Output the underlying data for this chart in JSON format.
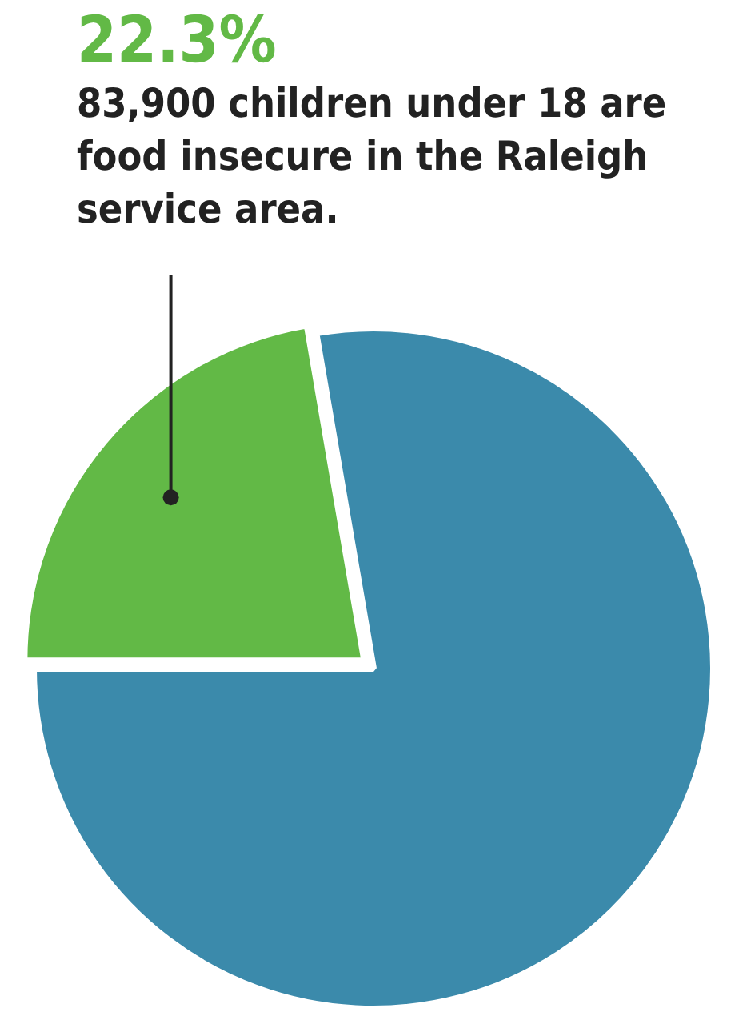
{
  "chart_data": {
    "type": "pie",
    "categories": [
      null,
      null
    ],
    "values": [
      22.3,
      77.7
    ],
    "colors": [
      "#62b946",
      "#3b8aab"
    ],
    "value_labels": [
      "22.3%",
      null
    ],
    "annotations": [
      "83,900 children under 18 are food insecure in the Raleigh service area."
    ],
    "legend": false
  }
}
